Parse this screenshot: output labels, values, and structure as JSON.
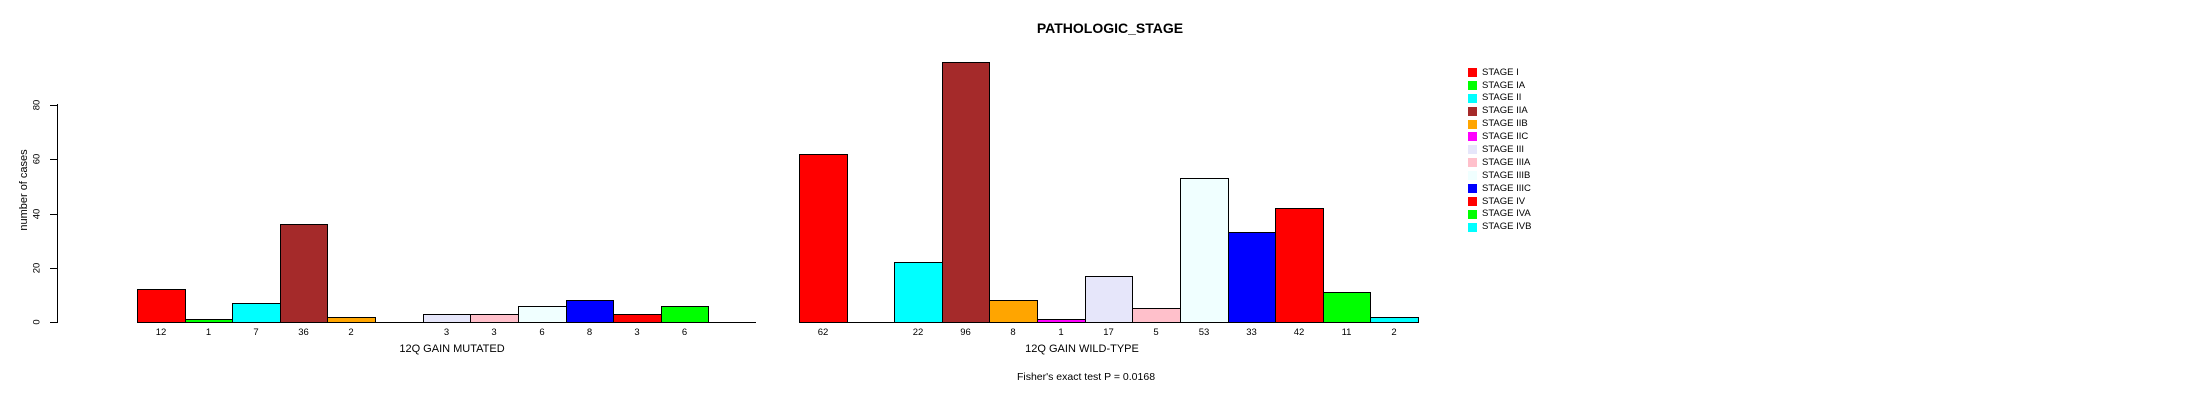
{
  "title": "PATHOLOGIC_STAGE",
  "footer": "Fisher's exact test P = 0.0168",
  "y_axis": {
    "label": "number of cases",
    "tick_labels": [
      "0",
      "20",
      "40",
      "60",
      "80"
    ]
  },
  "legend": {
    "items": [
      {
        "label": "STAGE I",
        "color": "#FF0000"
      },
      {
        "label": "STAGE IA",
        "color": "#00FF00"
      },
      {
        "label": "STAGE II",
        "color": "#00FFFF"
      },
      {
        "label": "STAGE IIA",
        "color": "#A52A2A"
      },
      {
        "label": "STAGE IIB",
        "color": "#FFA500"
      },
      {
        "label": "STAGE IIC",
        "color": "#FF00FF"
      },
      {
        "label": "STAGE III",
        "color": "#E6E6FA"
      },
      {
        "label": "STAGE IIIA",
        "color": "#FFC0CB"
      },
      {
        "label": "STAGE IIIB",
        "color": "#F0FFFF"
      },
      {
        "label": "STAGE IIIC",
        "color": "#0000FF"
      },
      {
        "label": "STAGE IV",
        "color": "#FF0000"
      },
      {
        "label": "STAGE IVA",
        "color": "#00FF00"
      },
      {
        "label": "STAGE IVB",
        "color": "#00FFFF"
      }
    ]
  },
  "chart_data": {
    "type": "bar",
    "title": "PATHOLOGIC_STAGE",
    "xlabel": "",
    "ylabel": "number of cases",
    "ylim": [
      0,
      96
    ],
    "axis_max_tick": 80,
    "yticks": [
      0,
      20,
      40,
      60,
      80
    ],
    "grid": false,
    "legend_position": "right",
    "categories": [
      "STAGE I",
      "STAGE IA",
      "STAGE II",
      "STAGE IIA",
      "STAGE IIB",
      "STAGE IIC",
      "STAGE III",
      "STAGE IIIA",
      "STAGE IIIB",
      "STAGE IIIC",
      "STAGE IV",
      "STAGE IVA",
      "STAGE IVB"
    ],
    "colors": [
      "#FF0000",
      "#00FF00",
      "#00FFFF",
      "#A52A2A",
      "#FFA500",
      "#FF00FF",
      "#E6E6FA",
      "#FFC0CB",
      "#F0FFFF",
      "#0000FF",
      "#FF0000",
      "#00FF00",
      "#00FFFF"
    ],
    "series": [
      {
        "name": "12Q GAIN MUTATED",
        "values": [
          12,
          1,
          7,
          36,
          2,
          0,
          3,
          3,
          6,
          8,
          3,
          6,
          0
        ]
      },
      {
        "name": "12Q GAIN WILD-TYPE",
        "values": [
          62,
          0,
          22,
          96,
          8,
          1,
          17,
          5,
          53,
          33,
          42,
          11,
          2
        ]
      }
    ],
    "bar_value_labels_shown_only_when_nonzero": true,
    "annotation": "Fisher's exact test P = 0.0168"
  }
}
